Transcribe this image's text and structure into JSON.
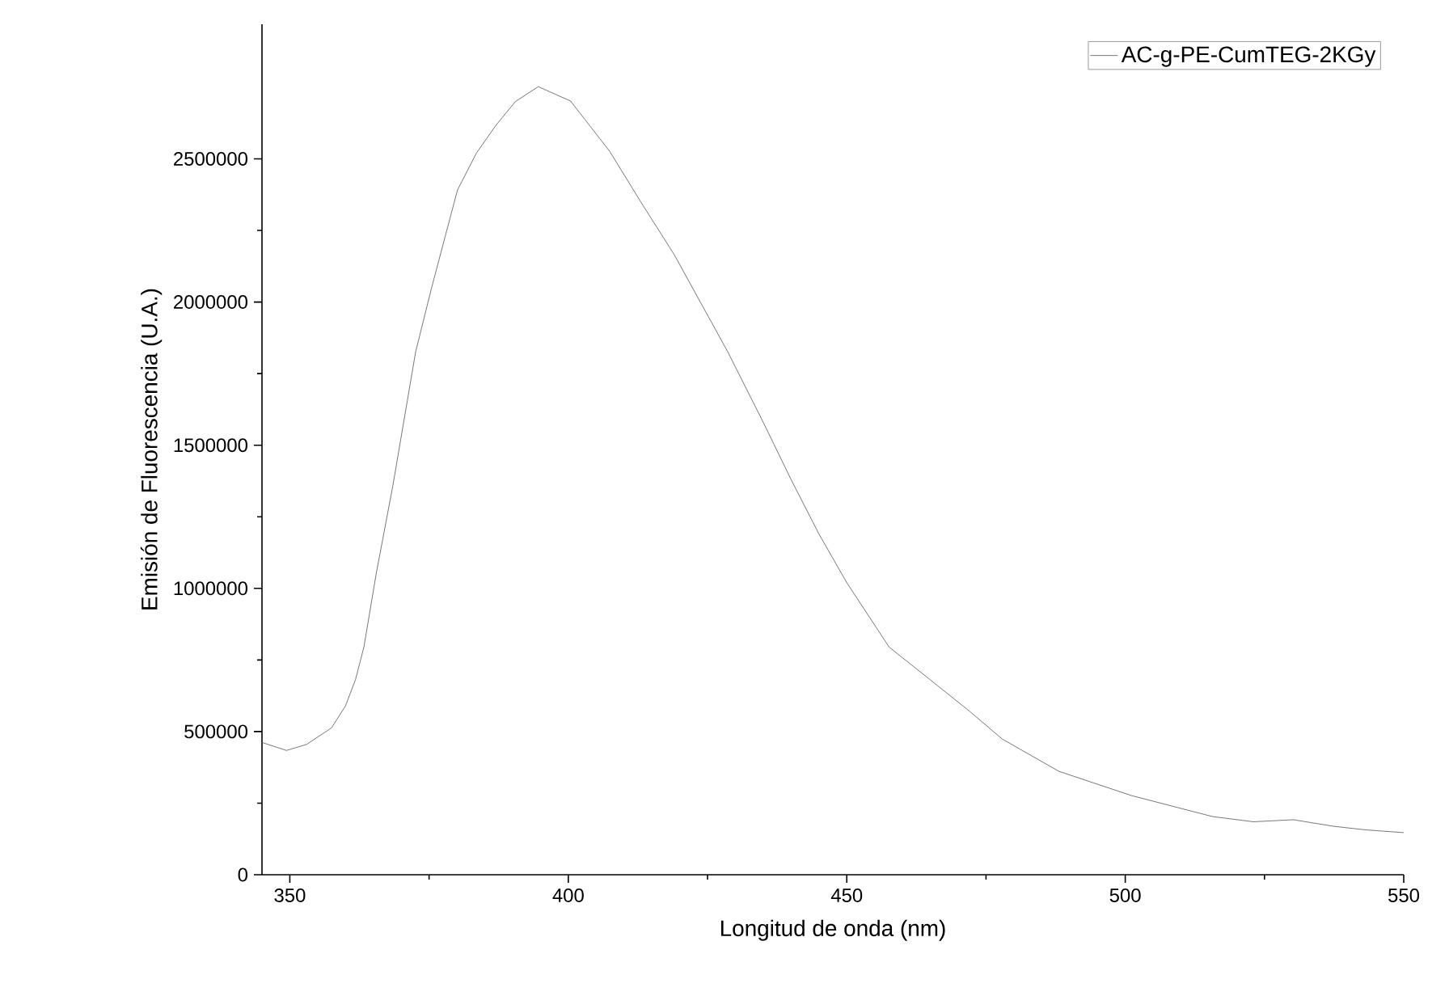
{
  "chart_data": {
    "type": "line",
    "xlabel": "Longitud de onda (nm)",
    "ylabel": "Emisión de Fluorescencia (U.A.)",
    "xlim": [
      345,
      550
    ],
    "xticks": [
      350,
      400,
      450,
      500,
      550
    ],
    "ylim": [
      0,
      2970000
    ],
    "yticks": [
      0,
      500000,
      1000000,
      1500000,
      2000000,
      2500000
    ],
    "legend": "top right",
    "grid": false,
    "series": [
      {
        "name": "AC-g-PE-CumTEG-2KGy",
        "color": "#555555",
        "x": [
          345,
          349.4,
          353,
          357.5,
          360,
          361.8,
          363.3,
          365.5,
          368.5,
          372.6,
          375.5,
          380.1,
          383.5,
          387,
          390.5,
          394.6,
          400.4,
          407.4,
          413,
          419,
          428.6,
          435,
          440,
          445,
          450,
          457.6,
          464.9,
          472.1,
          477.9,
          488.1,
          501.2,
          515.7,
          523,
          530.2,
          537.5,
          543,
          550
        ],
        "values": [
          462000,
          434000,
          455000,
          513000,
          590000,
          682000,
          795000,
          1050000,
          1359000,
          1827000,
          2053000,
          2391000,
          2520000,
          2617000,
          2700000,
          2752000,
          2702000,
          2527000,
          2350000,
          2166000,
          1827000,
          1580000,
          1380000,
          1190000,
          1020000,
          795000,
          682000,
          570000,
          474000,
          361000,
          276000,
          203000,
          185000,
          192000,
          169000,
          157000,
          147000
        ]
      }
    ]
  }
}
